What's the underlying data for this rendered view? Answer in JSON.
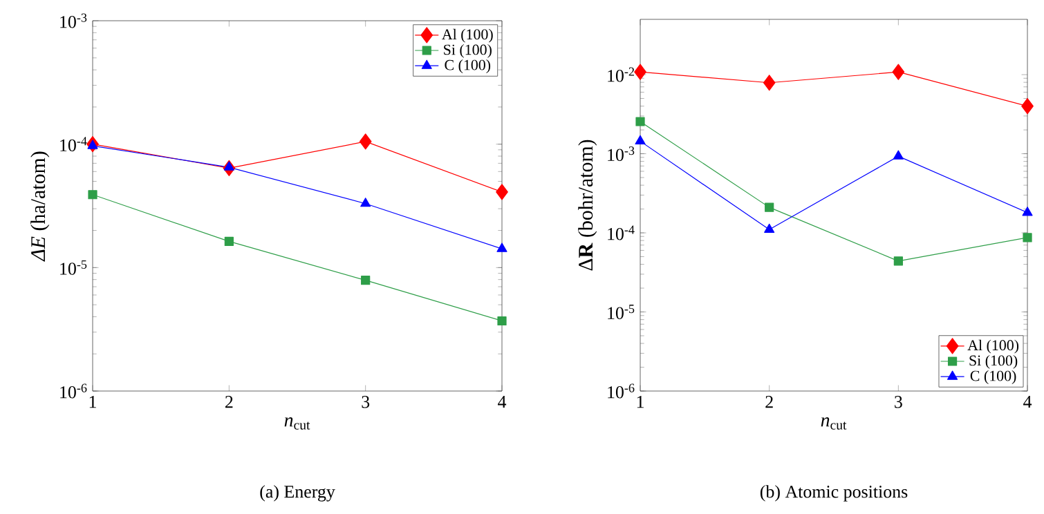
{
  "chart_data": [
    {
      "type": "line",
      "xlabel": "*n*$_{cut}$",
      "ylabel": "*ΔE* (ha/atom)",
      "log": "y",
      "legend": "top right",
      "grid": false,
      "x": [
        1,
        2,
        3,
        4
      ],
      "xlim": [
        1,
        4
      ],
      "xticks": [
        1,
        2,
        3,
        4
      ],
      "ylim": [
        1e-06,
        0.001
      ],
      "yticks": [
        {
          "value": 1e-06,
          "label": "10$^{-6}$"
        },
        {
          "value": 1e-05,
          "label": "10$^{-5}$"
        },
        {
          "value": 0.0001,
          "label": "10$^{-4}$"
        },
        {
          "value": 0.001,
          "label": "10$^{-3}$"
        }
      ],
      "series": [
        {
          "name": "Al (100)",
          "color": "#ff0000",
          "marker": "diamond",
          "values": [
            0.0001,
            6.4e-05,
            0.000105,
            4.1e-05
          ]
        },
        {
          "name": "Si (100)",
          "color": "#2e9e48",
          "marker": "square",
          "values": [
            3.9e-05,
            1.63e-05,
            7.9e-06,
            3.7e-06
          ]
        },
        {
          "name": "C (100)",
          "color": "#0000ff",
          "marker": "triangle",
          "values": [
            9.7e-05,
            6.5e-05,
            3.3e-05,
            1.42e-05
          ]
        }
      ],
      "annotations": [
        "(a) Energy"
      ]
    },
    {
      "type": "line",
      "xlabel": "*n*$_{cut}$",
      "ylabel": "Δ**R** (bohr/atom)",
      "log": "y",
      "legend": "bottom right",
      "grid": false,
      "x": [
        1,
        2,
        3,
        4
      ],
      "xlim": [
        1,
        4
      ],
      "xticks": [
        1,
        2,
        3,
        4
      ],
      "ylim": [
        1e-06,
        0.05
      ],
      "yticks": [
        {
          "value": 1e-06,
          "label": "10$^{-6}$"
        },
        {
          "value": 1e-05,
          "label": "10$^{-5}$"
        },
        {
          "value": 0.0001,
          "label": "10$^{-4}$"
        },
        {
          "value": 0.001,
          "label": "10$^{-3}$"
        },
        {
          "value": 0.01,
          "label": "10$^{-2}$"
        }
      ],
      "series": [
        {
          "name": "Al (100)",
          "color": "#ff0000",
          "marker": "diamond",
          "values": [
            0.0108,
            0.0079,
            0.0108,
            0.004
          ]
        },
        {
          "name": "Si (100)",
          "color": "#2e9e48",
          "marker": "square",
          "values": [
            0.00255,
            0.00021,
            4.4e-05,
            8.7e-05
          ]
        },
        {
          "name": "C (100)",
          "color": "#0000ff",
          "marker": "triangle",
          "values": [
            0.00144,
            0.00011,
            0.00093,
            0.00018
          ]
        }
      ],
      "annotations": [
        "(b) Atomic positions"
      ]
    }
  ]
}
